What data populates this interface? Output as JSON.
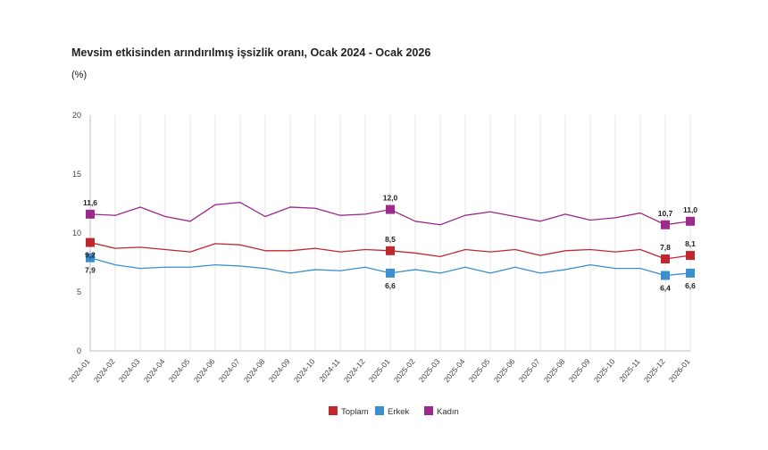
{
  "chart_data": {
    "type": "line",
    "title": "Mevsim etkisinden arındırılmış işsizlik oranı, Ocak 2024 - Ocak 2026",
    "unit": "(%)",
    "ylim": [
      0,
      20
    ],
    "yticks": [
      0,
      5,
      10,
      15,
      20
    ],
    "grid": "vertical",
    "legend_position": "bottom",
    "categories": [
      "2024-01",
      "2024-02",
      "2024-03",
      "2024-04",
      "2024-05",
      "2024-06",
      "2024-07",
      "2024-08",
      "2024-09",
      "2024-10",
      "2024-11",
      "2024-12",
      "2025-01",
      "2025-02",
      "2025-03",
      "2025-04",
      "2025-05",
      "2025-06",
      "2025-07",
      "2025-08",
      "2025-09",
      "2025-10",
      "2025-11",
      "2025-12",
      "2026-01"
    ],
    "series": [
      {
        "name": "Toplam",
        "color": "#c0282f",
        "values": [
          9.2,
          8.7,
          8.8,
          8.6,
          8.4,
          9.1,
          9.0,
          8.5,
          8.5,
          8.7,
          8.4,
          8.6,
          8.5,
          8.3,
          8.0,
          8.6,
          8.4,
          8.6,
          8.1,
          8.5,
          8.6,
          8.4,
          8.6,
          7.8,
          8.1
        ],
        "labels": [
          {
            "index": 0,
            "text": "9,2",
            "pos": "below"
          },
          {
            "index": 12,
            "text": "8,5",
            "pos": "above"
          },
          {
            "index": 23,
            "text": "7,8",
            "pos": "above"
          },
          {
            "index": 24,
            "text": "8,1",
            "pos": "above"
          }
        ]
      },
      {
        "name": "Erkek",
        "color": "#3b8fd0",
        "values": [
          7.9,
          7.3,
          7.0,
          7.1,
          7.1,
          7.3,
          7.2,
          7.0,
          6.6,
          6.9,
          6.8,
          7.1,
          6.6,
          6.9,
          6.6,
          7.1,
          6.6,
          7.1,
          6.6,
          6.9,
          7.3,
          7.0,
          7.0,
          6.4,
          6.6
        ],
        "labels": [
          {
            "index": 0,
            "text": "7,9",
            "pos": "below"
          },
          {
            "index": 12,
            "text": "6,6",
            "pos": "below"
          },
          {
            "index": 23,
            "text": "6,4",
            "pos": "below"
          },
          {
            "index": 24,
            "text": "6,6",
            "pos": "below"
          }
        ]
      },
      {
        "name": "Kadın",
        "color": "#9c2a8c",
        "values": [
          11.6,
          11.5,
          12.2,
          11.4,
          11.0,
          12.4,
          12.6,
          11.4,
          12.2,
          12.1,
          11.5,
          11.6,
          12.0,
          11.0,
          10.7,
          11.5,
          11.8,
          11.4,
          11.0,
          11.6,
          11.1,
          11.3,
          11.7,
          10.7,
          11.0
        ],
        "labels": [
          {
            "index": 0,
            "text": "11,6",
            "pos": "above"
          },
          {
            "index": 12,
            "text": "12,0",
            "pos": "above"
          },
          {
            "index": 23,
            "text": "10,7",
            "pos": "above"
          },
          {
            "index": 24,
            "text": "11,0",
            "pos": "above"
          }
        ]
      }
    ]
  }
}
